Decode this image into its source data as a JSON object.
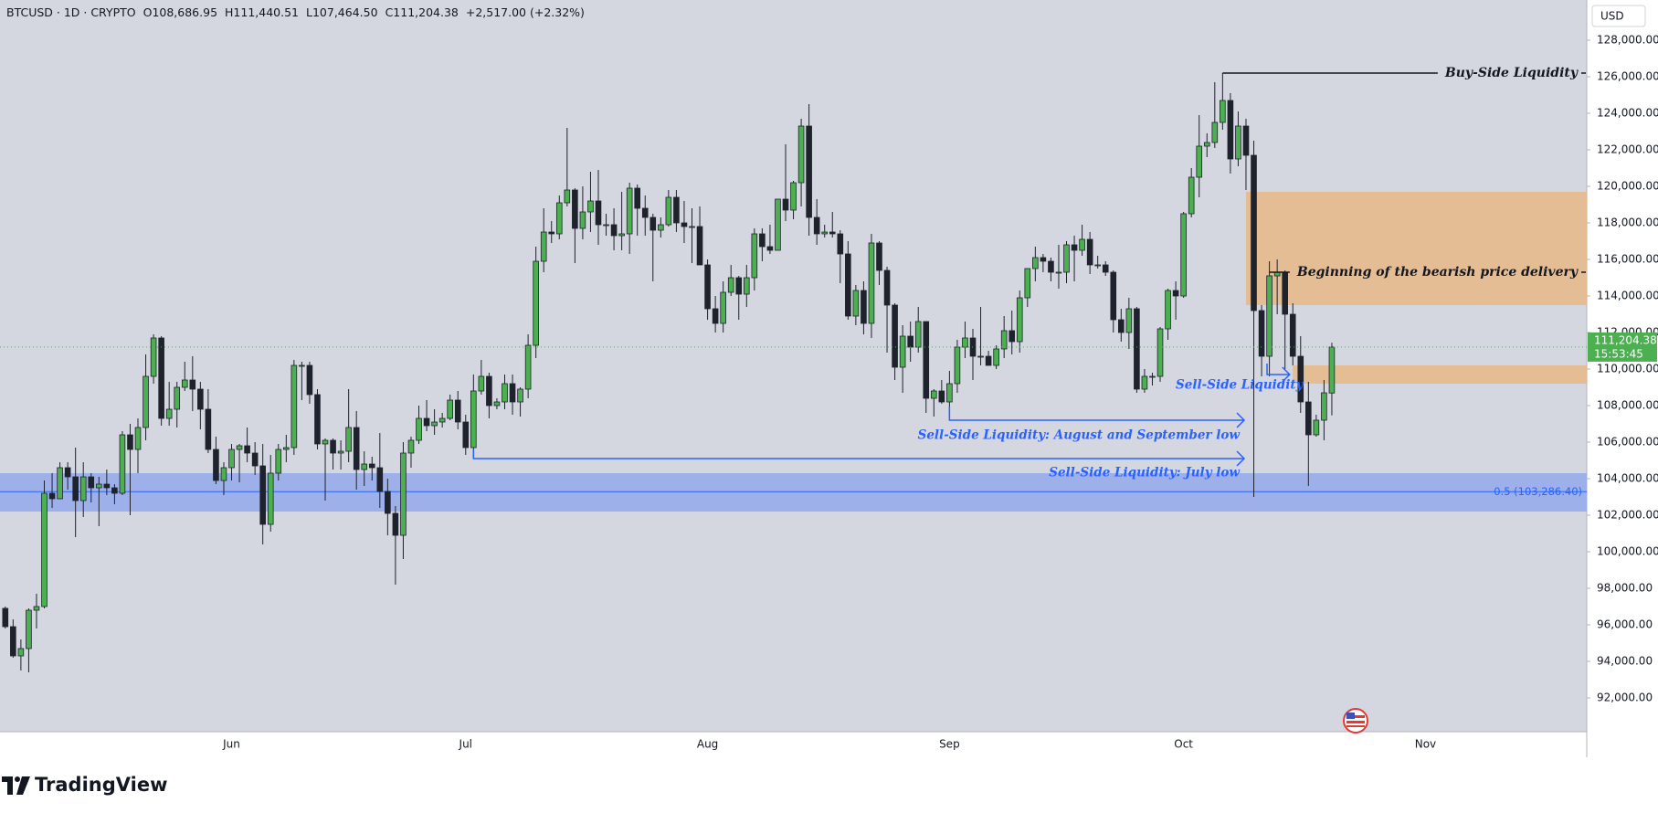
{
  "chart_data": {
    "type": "candlestick",
    "legend": {
      "symbol": "BTCUSD · 1D · CRYPTO",
      "open": "O108,686.95",
      "high": "H111,440.51",
      "low": "L107,464.50",
      "close": "C111,204.38",
      "change": "+2,517.00 (+2.32%)"
    },
    "currency": "USD",
    "last_price": {
      "label": "111,204.38",
      "countdown": "15:53:45",
      "color": "#4caf50"
    },
    "brand": "TradingView",
    "up_color": "#4caf50",
    "down_color": "#1e222d",
    "grid": false,
    "ylim": [
      90150,
      130200
    ],
    "yticks": [
      {
        "value": 92000,
        "label": "92,000.00"
      },
      {
        "value": 94000,
        "label": "94,000.00"
      },
      {
        "value": 96000,
        "label": "96,000.00"
      },
      {
        "value": 98000,
        "label": "98,000.00"
      },
      {
        "value": 100000,
        "label": "100,000.00"
      },
      {
        "value": 102000,
        "label": "102,000.00"
      },
      {
        "value": 104000,
        "label": "104,000.00"
      },
      {
        "value": 106000,
        "label": "106,000.00"
      },
      {
        "value": 108000,
        "label": "108,000.00"
      },
      {
        "value": 110000,
        "label": "110,000.00"
      },
      {
        "value": 112000,
        "label": "112,000.00"
      },
      {
        "value": 114000,
        "label": "114,000.00"
      },
      {
        "value": 116000,
        "label": "116,000.00"
      },
      {
        "value": 118000,
        "label": "118,000.00"
      },
      {
        "value": 120000,
        "label": "120,000.00"
      },
      {
        "value": 122000,
        "label": "122,000.00"
      },
      {
        "value": 124000,
        "label": "124,000.00"
      },
      {
        "value": 126000,
        "label": "126,000.00"
      },
      {
        "value": 128000,
        "label": "128,000.00"
      }
    ],
    "categories": [
      null,
      null,
      null,
      null,
      null,
      null,
      null,
      null,
      null,
      null,
      null,
      null,
      null,
      null,
      null,
      null,
      null,
      null,
      null,
      null,
      null,
      null,
      null,
      null,
      null,
      null,
      null,
      null,
      null,
      "Jun",
      null,
      null,
      null,
      null,
      null,
      null,
      null,
      null,
      null,
      null,
      null,
      null,
      null,
      null,
      null,
      null,
      null,
      null,
      null,
      null,
      null,
      null,
      null,
      null,
      null,
      null,
      null,
      null,
      null,
      "Jul",
      null,
      null,
      null,
      null,
      null,
      null,
      null,
      null,
      null,
      null,
      null,
      null,
      null,
      null,
      null,
      null,
      null,
      null,
      null,
      null,
      null,
      null,
      null,
      null,
      null,
      null,
      null,
      null,
      null,
      null,
      "Aug",
      null,
      null,
      null,
      null,
      null,
      null,
      null,
      null,
      null,
      null,
      null,
      null,
      null,
      null,
      null,
      null,
      null,
      null,
      null,
      null,
      null,
      null,
      null,
      null,
      null,
      null,
      null,
      null,
      null,
      null,
      "Sep",
      null,
      null,
      null,
      null,
      null,
      null,
      null,
      null,
      null,
      null,
      null,
      null,
      null,
      null,
      null,
      null,
      null,
      null,
      null,
      null,
      null,
      null,
      null,
      null,
      null,
      null,
      null,
      null,
      null,
      "Oct",
      null,
      null,
      null,
      null,
      null,
      null,
      null,
      null,
      null,
      null,
      null,
      null,
      null,
      null,
      null,
      null,
      null,
      null,
      null,
      null,
      null,
      null,
      null,
      null,
      null,
      null,
      null,
      null,
      null,
      null,
      "Nov",
      null,
      null,
      null,
      null,
      null,
      null,
      null,
      null,
      null,
      null,
      null,
      null,
      null,
      null,
      null,
      null,
      null,
      null,
      null,
      null
    ],
    "open": [
      96900,
      95900,
      94300,
      94700,
      96800,
      97000,
      103200,
      102900,
      104600,
      104100,
      102800,
      104100,
      103500,
      103700,
      103500,
      103200,
      106400,
      105600,
      106800,
      109600,
      111700,
      107300,
      107800,
      109000,
      109400,
      108900,
      107800,
      105600,
      103900,
      104600,
      105600,
      105800,
      105400,
      104700,
      101500,
      104300,
      105600,
      105700,
      110200,
      110200,
      108600,
      105900,
      106100,
      105400,
      105500,
      106800,
      104500,
      104800,
      104600,
      103300,
      102100,
      100900,
      105400,
      106100,
      107300,
      106900,
      107100,
      107300,
      108300,
      107100,
      105700,
      108800,
      109600,
      108000,
      108200,
      109200,
      108200,
      108900,
      111300,
      115900,
      117500,
      117400,
      119100,
      119800,
      117700,
      118600,
      119200,
      117900,
      117900,
      117300,
      117400,
      119900,
      118800,
      118300,
      117600,
      117900,
      119400,
      118000,
      117800,
      117800,
      115700,
      113300,
      112500,
      114200,
      115000,
      114100,
      115000,
      117400,
      116700,
      116500,
      119300,
      118700,
      120200,
      123300,
      118300,
      117400,
      117500,
      117400,
      116300,
      112900,
      114300,
      112500,
      116900,
      115400,
      113500,
      110100,
      111800,
      111200,
      112600,
      108400,
      108800,
      108200,
      109200,
      111200,
      111700,
      110700,
      110700,
      110200,
      111100,
      112100,
      111500,
      113900,
      115500,
      116100,
      115900,
      115300,
      115300,
      116800,
      116500,
      117100,
      115700,
      115700,
      115300,
      112700,
      112000,
      113300,
      108900,
      109600,
      109600,
      112200,
      114300,
      114000,
      118500,
      120500,
      122200,
      122400,
      123500,
      124700,
      121500,
      123300,
      121700,
      113200,
      110700,
      115100,
      115300,
      113000,
      110700,
      108200,
      106400,
      107200,
      108686.95,
      null,
      null,
      null,
      null,
      null,
      null,
      null,
      null,
      null,
      null,
      null,
      null,
      null,
      null,
      null,
      null,
      null,
      null,
      null,
      null,
      null,
      null,
      null,
      null,
      null,
      null,
      null,
      null,
      null,
      null,
      null,
      null
    ],
    "high": [
      97000,
      96300,
      95200,
      96900,
      97700,
      103900,
      104300,
      104900,
      104900,
      105700,
      104900,
      104300,
      104100,
      104500,
      103700,
      106600,
      107000,
      107300,
      110800,
      111900,
      111800,
      109300,
      109300,
      110400,
      110700,
      109300,
      108900,
      106300,
      104900,
      105900,
      105900,
      106800,
      106000,
      105900,
      105300,
      105900,
      106400,
      110500,
      110400,
      110400,
      108900,
      106200,
      106200,
      106100,
      108900,
      107700,
      105500,
      105200,
      106500,
      104000,
      102500,
      106000,
      106300,
      108000,
      108300,
      107800,
      107600,
      108600,
      108800,
      107500,
      109700,
      110500,
      109800,
      108400,
      109700,
      109700,
      109000,
      111900,
      116700,
      118800,
      118100,
      119500,
      123200,
      119900,
      120000,
      120800,
      120900,
      118500,
      118800,
      119700,
      120200,
      120100,
      119500,
      118500,
      118300,
      119800,
      119800,
      119200,
      118800,
      118900,
      116000,
      114000,
      114800,
      115700,
      115100,
      115700,
      117700,
      117700,
      117900,
      119300,
      122300,
      120300,
      123700,
      124500,
      119300,
      117900,
      118600,
      117600,
      117000,
      114600,
      114800,
      117400,
      117000,
      115600,
      113600,
      112400,
      112600,
      113400,
      112600,
      108900,
      109400,
      109900,
      111600,
      112600,
      112200,
      113400,
      111000,
      111300,
      112900,
      113200,
      114300,
      115500,
      116700,
      116300,
      116100,
      116800,
      117000,
      117300,
      117900,
      117500,
      116200,
      115900,
      115400,
      113300,
      113900,
      113400,
      110000,
      109800,
      112300,
      114400,
      114800,
      118600,
      121000,
      123900,
      122900,
      125700,
      126200,
      125100,
      124100,
      123700,
      122500,
      113500,
      115900,
      116000,
      115400,
      113600,
      111800,
      109300,
      107500,
      109400,
      111440.51,
      null,
      null,
      null,
      null,
      null,
      null,
      null,
      null,
      null,
      null,
      null,
      null,
      null,
      null,
      null,
      null,
      null,
      null,
      null,
      null,
      null,
      null,
      null,
      null,
      null,
      null,
      null,
      null,
      null,
      null,
      null,
      null
    ],
    "low": [
      95800,
      94200,
      93500,
      93400,
      95800,
      96900,
      102400,
      102900,
      103400,
      100800,
      101900,
      102700,
      101400,
      103100,
      102600,
      103100,
      102000,
      104300,
      106100,
      109200,
      106900,
      106900,
      106800,
      108800,
      107700,
      106700,
      105400,
      103700,
      103100,
      103900,
      103800,
      104900,
      104200,
      100400,
      101100,
      103900,
      104900,
      105300,
      108300,
      108100,
      105600,
      102800,
      104500,
      104500,
      104900,
      103400,
      103600,
      103900,
      102400,
      100900,
      98200,
      99600,
      104600,
      105900,
      106600,
      106400,
      106800,
      107200,
      106700,
      105300,
      105100,
      108600,
      107300,
      107800,
      107800,
      107500,
      107400,
      108400,
      110600,
      115300,
      116900,
      117100,
      118900,
      115800,
      117100,
      117500,
      116800,
      117300,
      116500,
      116500,
      116300,
      117300,
      117300,
      114800,
      117200,
      117800,
      117500,
      116900,
      115800,
      115700,
      112700,
      112000,
      112000,
      114000,
      112700,
      113400,
      114300,
      115900,
      116300,
      116500,
      118100,
      118200,
      118900,
      117300,
      116800,
      117200,
      117200,
      114700,
      112700,
      112400,
      111900,
      111700,
      114600,
      110900,
      109400,
      108700,
      110400,
      110900,
      107600,
      107400,
      108100,
      107300,
      108700,
      110600,
      109400,
      110200,
      110200,
      110000,
      110600,
      110800,
      110900,
      113400,
      114800,
      115300,
      114800,
      114400,
      114700,
      114800,
      116200,
      115200,
      115500,
      115100,
      112000,
      111500,
      111100,
      108700,
      108700,
      109100,
      109300,
      111600,
      112700,
      113900,
      118300,
      119400,
      121600,
      122100,
      123100,
      120700,
      121100,
      119800,
      103000,
      109600,
      109600,
      113000,
      110000,
      110200,
      107600,
      103600,
      106300,
      106100,
      107464.5,
      null,
      null,
      null,
      null,
      null,
      null,
      null,
      null,
      null,
      null,
      null,
      null,
      null,
      null,
      null,
      null,
      null,
      null,
      null,
      null,
      null,
      null,
      null,
      null,
      null,
      null,
      null,
      null,
      null,
      null,
      null,
      null
    ],
    "close": [
      95900,
      94300,
      94700,
      96800,
      97000,
      103200,
      102900,
      104600,
      104100,
      102800,
      104100,
      103500,
      103700,
      103500,
      103200,
      106400,
      105600,
      106800,
      109600,
      111700,
      107300,
      107800,
      109000,
      109400,
      108900,
      107800,
      105600,
      103900,
      104600,
      105600,
      105800,
      105400,
      104700,
      101500,
      104300,
      105600,
      105700,
      110200,
      110200,
      108600,
      105900,
      106100,
      105400,
      105500,
      106800,
      104500,
      104800,
      104600,
      103300,
      102100,
      100900,
      105400,
      106100,
      107300,
      106900,
      107100,
      107300,
      108300,
      107100,
      105700,
      108800,
      109600,
      108000,
      108200,
      109200,
      108200,
      108900,
      111300,
      115900,
      117500,
      117400,
      119100,
      119800,
      117700,
      118600,
      119200,
      117900,
      117900,
      117300,
      117400,
      119900,
      118800,
      118300,
      117600,
      117900,
      119400,
      118000,
      117800,
      117800,
      115700,
      113300,
      112500,
      114200,
      115000,
      114100,
      115000,
      117400,
      116700,
      116500,
      119300,
      118700,
      120200,
      123300,
      118300,
      117400,
      117500,
      117400,
      116300,
      112900,
      114300,
      112500,
      116900,
      115400,
      113500,
      110100,
      111800,
      111200,
      112600,
      108400,
      108800,
      108200,
      109200,
      111200,
      111700,
      110700,
      110700,
      110200,
      111100,
      112100,
      111500,
      113900,
      115500,
      116100,
      115900,
      115300,
      115300,
      116800,
      116500,
      117100,
      115700,
      115700,
      115300,
      112700,
      112000,
      113300,
      108900,
      109600,
      109600,
      112200,
      114300,
      114000,
      118500,
      120500,
      122200,
      122400,
      123500,
      124700,
      121500,
      123300,
      121700,
      113200,
      110700,
      115100,
      115300,
      113000,
      110700,
      108200,
      106400,
      107200,
      108700,
      111204.38,
      null,
      null,
      null,
      null,
      null,
      null,
      null,
      null,
      null,
      null,
      null,
      null,
      null,
      null,
      null,
      null,
      null,
      null,
      null,
      null,
      null,
      null,
      null,
      null,
      null,
      null,
      null,
      null,
      null,
      null,
      null,
      null
    ],
    "zones": [
      {
        "from": 113500,
        "to": 119700,
        "color": "#e6b987"
      },
      {
        "from": 109200,
        "to": 110200,
        "color": "#e6b987"
      },
      {
        "from": 102200,
        "to": 104300,
        "color": "#94a9ec"
      }
    ],
    "fib_level": {
      "label": "0.5 (103,286.40)",
      "value": 103286.4,
      "color": "#2962ff"
    },
    "annotations": [
      {
        "text": "Buy-Side Liquidity",
        "value": 126200
      },
      {
        "text": "Beginning of the bearish price delivery",
        "value": 115300
      },
      {
        "text": "Sell-Side Liquidity",
        "value": 109700
      },
      {
        "text": "Sell-Side Liquidity: August and September low",
        "value": 107200
      },
      {
        "text": "Sell-Side Liquidity: July low",
        "value": 105100
      }
    ]
  }
}
